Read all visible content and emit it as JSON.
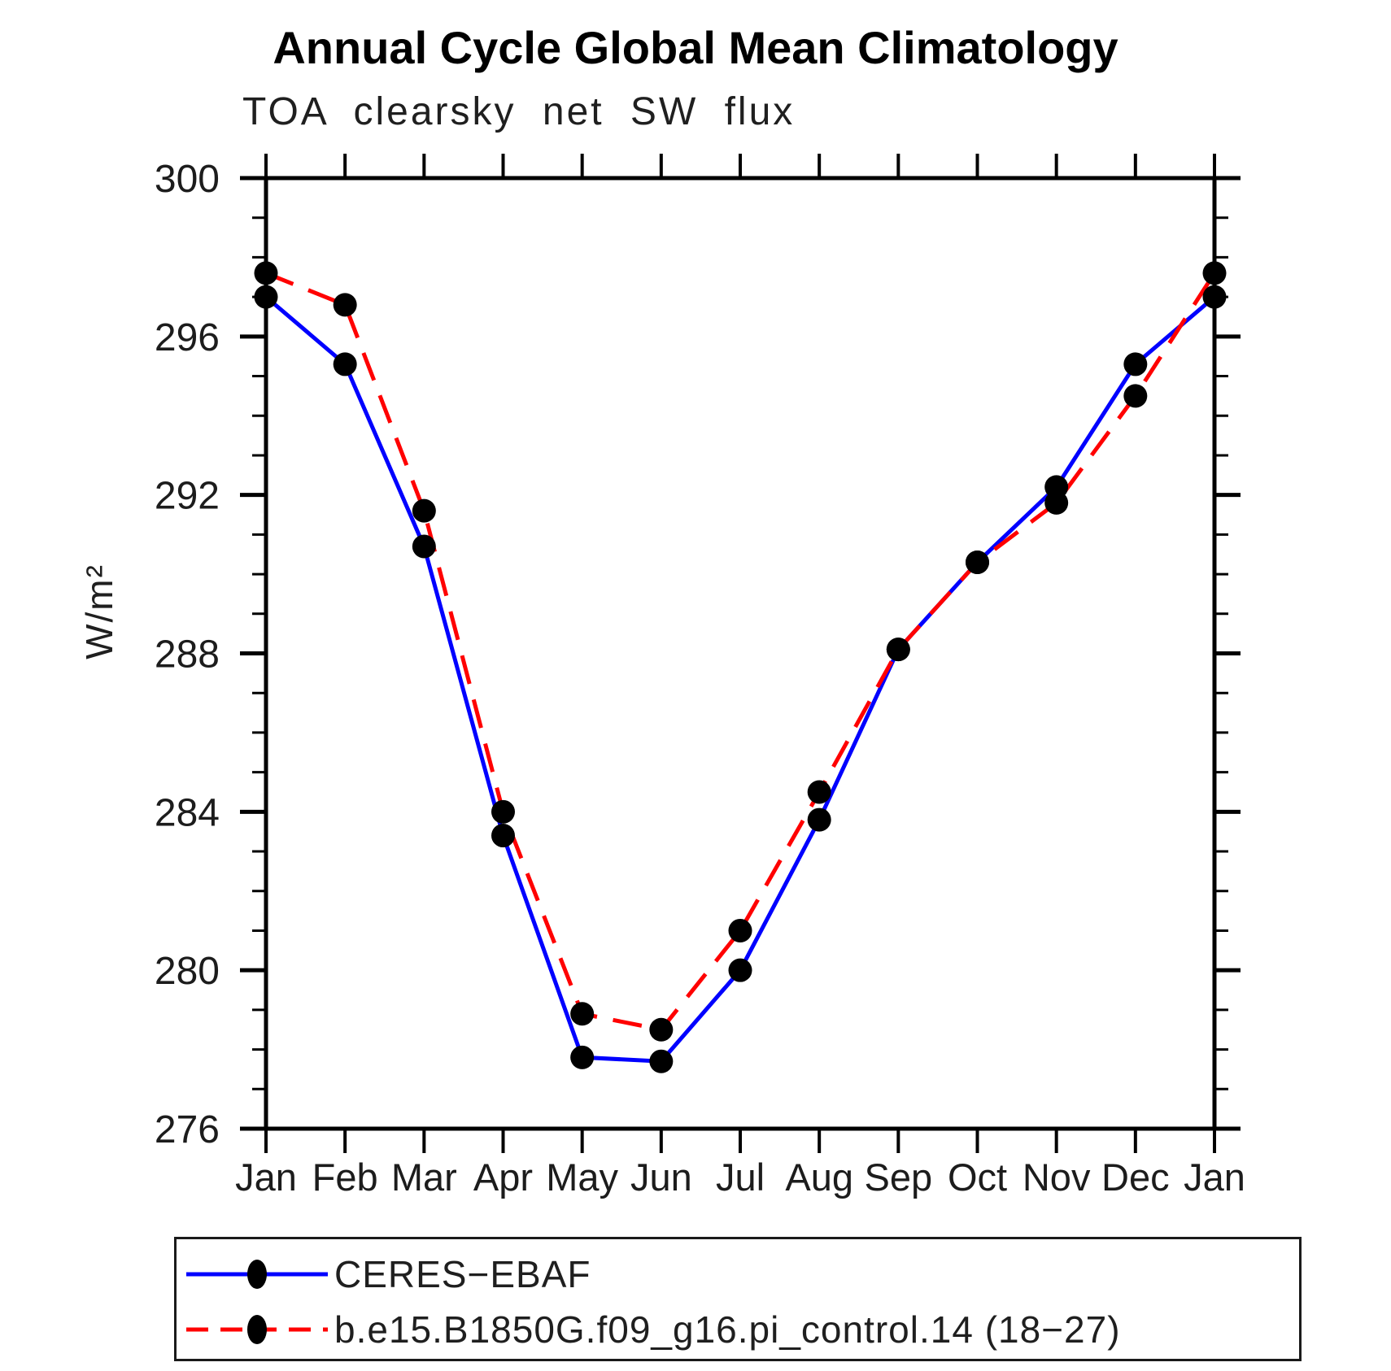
{
  "title": "Annual Cycle Global Mean Climatology",
  "subtitle": "TOA clearsky net SW flux",
  "ylabel": "W/m²",
  "chart_data": {
    "type": "line",
    "title": "Annual Cycle Global Mean Climatology",
    "subtitle": "TOA clearsky net SW flux",
    "ylabel": "W/m²",
    "categories": [
      "Jan",
      "Feb",
      "Mar",
      "Apr",
      "May",
      "Jun",
      "Jul",
      "Aug",
      "Sep",
      "Oct",
      "Nov",
      "Dec",
      "Jan"
    ],
    "series": [
      {
        "name": "CERES−EBAF",
        "color": "#0000ff",
        "line_style": "solid",
        "marker": "black-dot",
        "values": [
          297.0,
          295.3,
          290.7,
          283.4,
          277.8,
          277.7,
          280.0,
          283.8,
          288.1,
          290.3,
          292.2,
          295.3,
          297.0
        ]
      },
      {
        "name": "b.e15.B1850G.f09_g16.pi_control.14 (18−27)",
        "color": "#ff0000",
        "line_style": "dashed",
        "marker": "black-dot",
        "values": [
          297.6,
          296.8,
          291.6,
          284.0,
          278.9,
          278.5,
          281.0,
          284.5,
          288.1,
          290.3,
          291.8,
          294.5,
          297.6
        ]
      }
    ],
    "ylim": [
      276,
      300
    ],
    "y_major_ticks": [
      276,
      280,
      284,
      288,
      292,
      296,
      300
    ],
    "y_minor_step": 1,
    "x_tick_every_category": true,
    "grid": false,
    "legend_position": "bottom",
    "marker_color": "#000000",
    "axis_color": "#000000"
  }
}
